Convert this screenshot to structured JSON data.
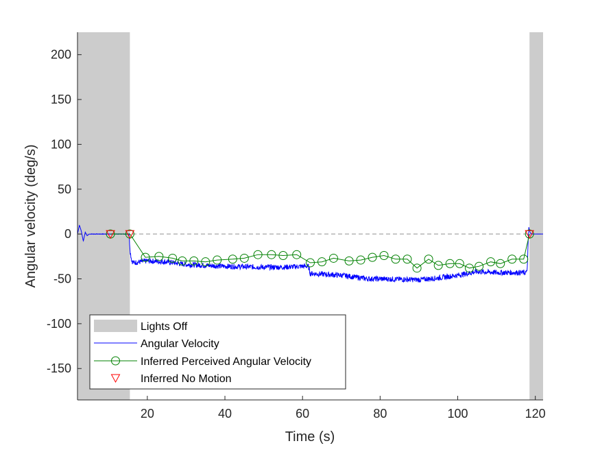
{
  "chart_data": {
    "type": "line",
    "xlabel": "Time (s)",
    "ylabel": "Angular velocity (deg/s)",
    "xlim": [
      2,
      122
    ],
    "ylim": [
      -185,
      225
    ],
    "xticks": [
      20,
      40,
      60,
      80,
      100,
      120
    ],
    "yticks": [
      200,
      150,
      100,
      50,
      0,
      -50,
      -100,
      -150
    ],
    "reference_line": {
      "y": 0,
      "style": "dashed",
      "color": "#a6a6a6"
    },
    "shaded_regions": [
      {
        "name": "Lights Off",
        "x0": 2,
        "x1": 15.5
      },
      {
        "name": "Lights Off",
        "x0": 118.5,
        "x1": 122
      }
    ],
    "legend": {
      "position": "lower-left",
      "entries": [
        "Lights Off",
        "Angular Velocity",
        "Inferred Perceived Angular Velocity",
        "Inferred No Motion"
      ]
    },
    "series": [
      {
        "name": "Angular Velocity",
        "style": "line",
        "color": "#0000ff",
        "noise_amplitude": 3,
        "x": [
          2,
          2.5,
          3.0,
          3.5,
          4.0,
          4.5,
          5,
          6,
          10,
          15.3,
          15.6,
          16.0,
          16.5,
          20,
          25,
          30,
          40,
          50,
          55,
          60,
          61.5,
          62,
          70,
          77,
          80,
          90,
          95,
          100,
          105,
          110,
          117.8,
          118.0,
          118.3,
          118.6,
          119,
          122
        ],
        "y": [
          0,
          10,
          3,
          -8,
          2,
          -2,
          0,
          0,
          0,
          0,
          -20,
          -30,
          -32,
          -30,
          -31,
          -34,
          -36,
          -37,
          -37,
          -36,
          -36,
          -44,
          -46,
          -50,
          -50,
          -51,
          -49,
          -46,
          -42,
          -43,
          -43,
          -30,
          8,
          2,
          0,
          0
        ]
      },
      {
        "name": "Inferred Perceived Angular Velocity",
        "style": "line-circle",
        "color": "#008000",
        "x": [
          10.5,
          15.5,
          19.5,
          23,
          26.5,
          29,
          32,
          35,
          38,
          42,
          45,
          48.5,
          52,
          55,
          58.5,
          62,
          65,
          68,
          72,
          75,
          78,
          81,
          84,
          87,
          89.5,
          92.5,
          95,
          98,
          100.5,
          103,
          105.5,
          108.5,
          111,
          114,
          117,
          118.5
        ],
        "y": [
          0,
          0,
          -26,
          -25,
          -27,
          -30,
          -30,
          -31,
          -29,
          -28,
          -27,
          -23,
          -23,
          -24,
          -23,
          -32,
          -31,
          -27,
          -30,
          -29,
          -26,
          -24,
          -28,
          -28,
          -38,
          -28,
          -35,
          -33,
          -33,
          -38,
          -36,
          -31,
          -33,
          -28,
          -28,
          0
        ]
      },
      {
        "name": "Inferred No Motion",
        "style": "marker-triangle-down",
        "color": "#ff0000",
        "x": [
          10.5,
          15.5,
          118.5
        ],
        "y": [
          0,
          0,
          0
        ]
      }
    ]
  }
}
